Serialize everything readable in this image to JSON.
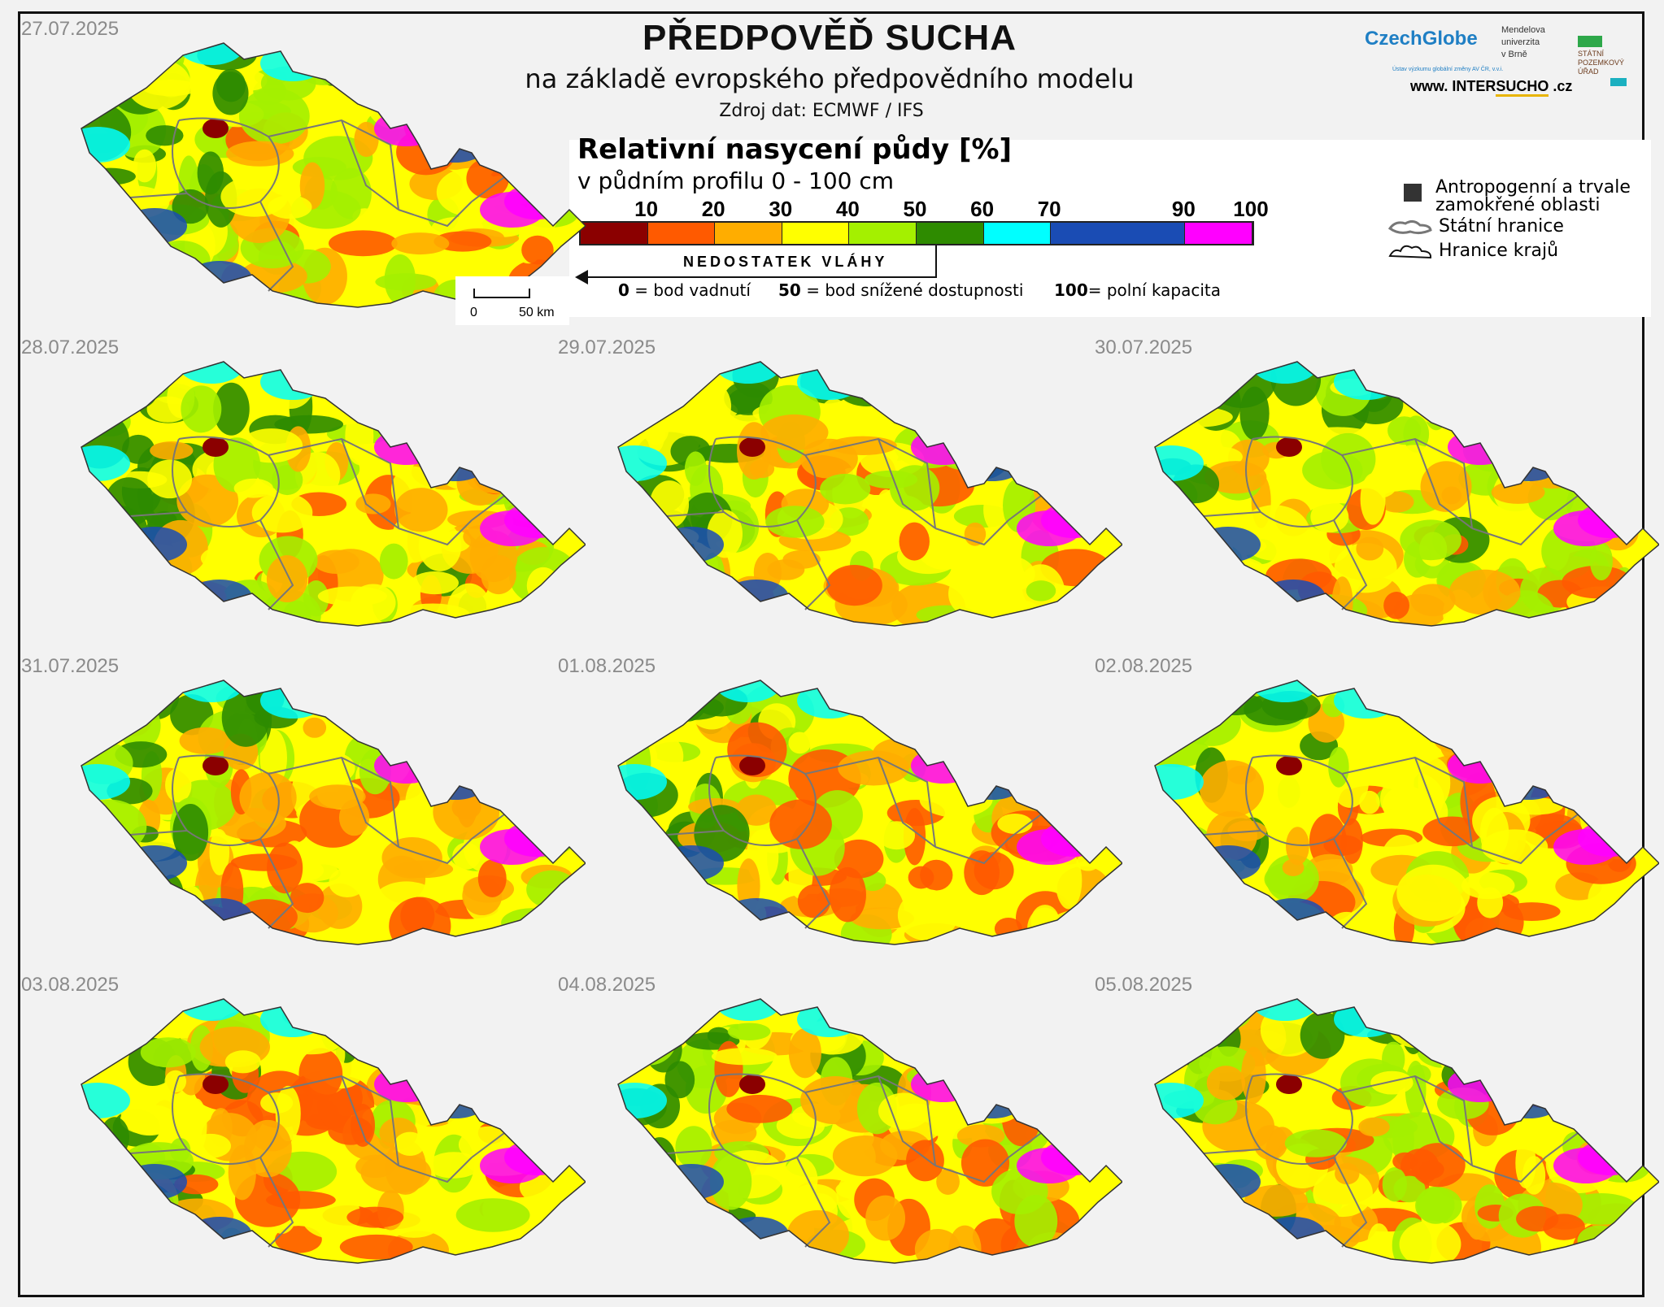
{
  "header": {
    "title": "PŘEDPOVĚĎ SUCHA",
    "subtitle": "na základě evropského předpovědního modelu",
    "source": "Zdroj dat: ECMWF / IFS"
  },
  "legend": {
    "title": "Relativní nasycení půdy [%]",
    "subtitle": "v půdním profilu 0 - 100 cm",
    "ticks": [
      "10",
      "20",
      "30",
      "40",
      "50",
      "60",
      "70",
      "90",
      "100"
    ],
    "classes": [
      {
        "from": 0,
        "to": 10,
        "color": "#8b0000"
      },
      {
        "from": 10,
        "to": 20,
        "color": "#ff5a00"
      },
      {
        "from": 20,
        "to": 30,
        "color": "#ffad00"
      },
      {
        "from": 30,
        "to": 40,
        "color": "#ffff00"
      },
      {
        "from": 40,
        "to": 50,
        "color": "#a4f000"
      },
      {
        "from": 50,
        "to": 60,
        "color": "#2e8b00"
      },
      {
        "from": 60,
        "to": 70,
        "color": "#00ffff"
      },
      {
        "from": 70,
        "to": 90,
        "color": "#1a4cb4"
      },
      {
        "from": 90,
        "to": 100,
        "color": "#ff00ff"
      }
    ],
    "deficit_label": "NEDOSTATEK VLÁHY",
    "key_0": {
      "num": "0",
      "text": " = bod vadnutí"
    },
    "key_50": {
      "num": "50",
      "text": " = bod snížené dostupnosti"
    },
    "key_100": {
      "num": "100",
      "text": "= polní kapacita"
    },
    "side": {
      "anthropogenic": "Antropogenní a trvale zamokřené oblasti",
      "state_border": "Státní hranice",
      "region_border": "Hranice krajů"
    }
  },
  "logos": {
    "czechglobe": "CzechGlobe",
    "czechglobe_sub": "Ústav výzkumu globální změny AV ČR, v.v.i.",
    "mendel": [
      "Mendelova",
      "univerzita",
      "v Brně"
    ],
    "spu": [
      "STÁTNÍ",
      "POZEMKOVÝ",
      "ÚŘAD"
    ],
    "website_pre": "www. INTER",
    "website_u": "SUCHO",
    "website_post": " .cz"
  },
  "scale": {
    "zero": "0",
    "fifty": "50 km"
  },
  "maps": [
    {
      "date": "27.07.2025",
      "dryness": 0.55
    },
    {
      "date": "28.07.2025",
      "dryness": 0.45
    },
    {
      "date": "29.07.2025",
      "dryness": 0.47
    },
    {
      "date": "30.07.2025",
      "dryness": 0.48
    },
    {
      "date": "31.07.2025",
      "dryness": 0.62
    },
    {
      "date": "01.08.2025",
      "dryness": 0.66
    },
    {
      "date": "02.08.2025",
      "dryness": 0.66
    },
    {
      "date": "03.08.2025",
      "dryness": 0.72
    },
    {
      "date": "04.08.2025",
      "dryness": 0.56
    },
    {
      "date": "05.08.2025",
      "dryness": 0.55
    }
  ]
}
